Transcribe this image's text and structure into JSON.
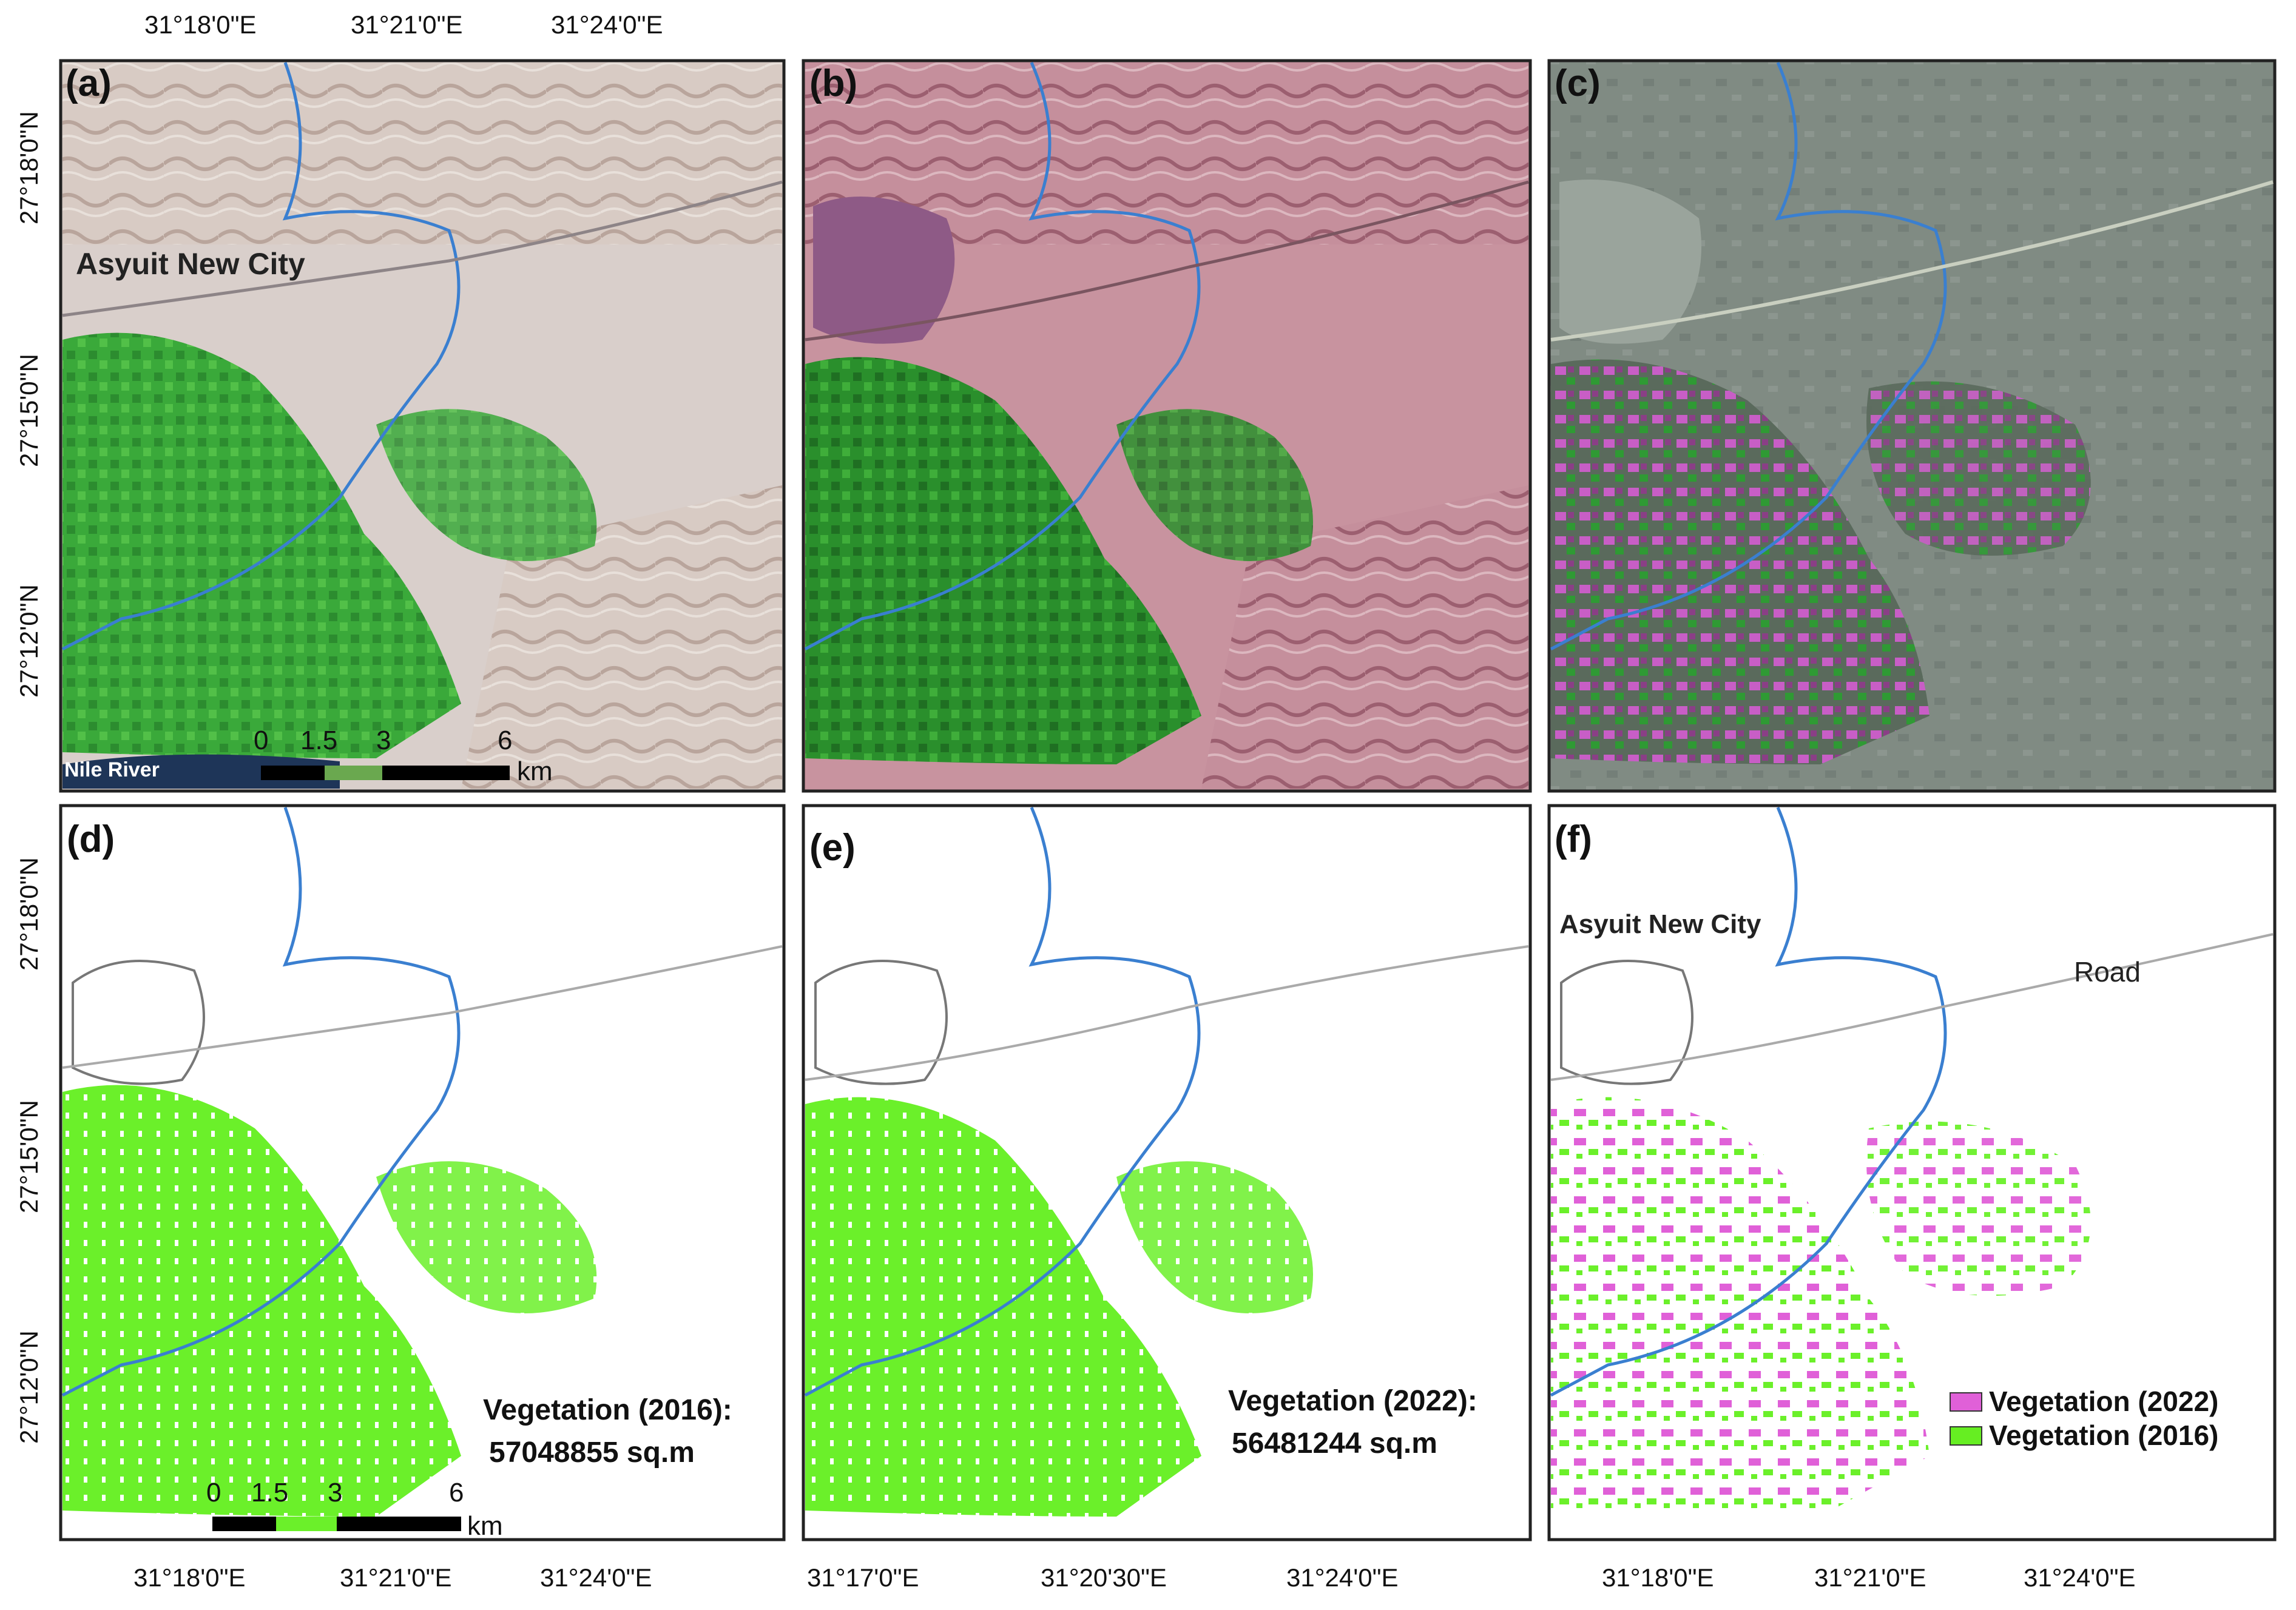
{
  "panels": {
    "a": {
      "label": "(a)",
      "place": "Asyuit New City",
      "river": "Nile River"
    },
    "b": {
      "label": "(b)"
    },
    "c": {
      "label": "(c)"
    },
    "d": {
      "label": "(d)",
      "stat_title": "Vegetation (2016):",
      "stat_value": "57048855 sq.m"
    },
    "e": {
      "label": "(e)",
      "stat_title": "Vegetation (2022):",
      "stat_value": "56481244 sq.m"
    },
    "f": {
      "label": "(f)",
      "place": "Asyuit New City",
      "road": "Road"
    }
  },
  "top_lon": [
    "31°18'0\"E",
    "31°21'0\"E",
    "31°24'0\"E"
  ],
  "lat_labels_top": [
    "27°18'0\"N",
    "27°15'0\"N",
    "27°12'0\"N"
  ],
  "lat_labels_bottom": [
    "27°18'0\"N",
    "27°15'0\"N",
    "27°12'0\"N"
  ],
  "bottom_lon_d": [
    "31°18'0\"E",
    "31°21'0\"E",
    "31°24'0\"E"
  ],
  "bottom_lon_e": [
    "31°17'0\"E",
    "31°20'30\"E",
    "31°24'0\"E"
  ],
  "bottom_lon_f": [
    "31°18'0\"E",
    "31°21'0\"E",
    "31°24'0\"E"
  ],
  "scalebar": {
    "ticks": [
      "0",
      "1.5",
      "3",
      "6"
    ],
    "unit": "km"
  },
  "legend": [
    {
      "label": "Vegetation (2022)",
      "color": "#e060d8"
    },
    {
      "label": "Vegetation (2016)",
      "color": "#66ee22"
    }
  ],
  "colors": {
    "vegetation_green": "#3fb43c",
    "mask_green": "#6bf02a",
    "magenta_change": "#e060d8",
    "river_blue": "#3a7fd0",
    "desert_a": "#d9cfcb",
    "desert_b": "#c8939f",
    "background_c": "#7f8a82"
  }
}
